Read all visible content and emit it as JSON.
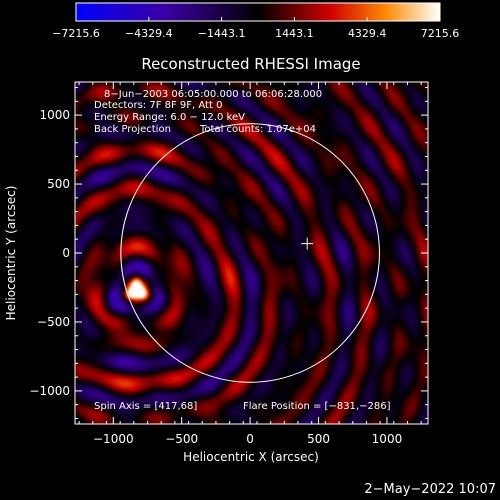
{
  "chart_data": {
    "type": "heatmap",
    "title": "Reconstructed RHESSI Image",
    "xlabel": "Heliocentric X (arcsec)",
    "ylabel": "Heliocentric Y (arcsec)",
    "xlim": [
      -1280,
      1300
    ],
    "ylim": [
      -1240,
      1240
    ],
    "x_ticks": [
      -1000,
      -500,
      0,
      500,
      1000
    ],
    "y_ticks": [
      -1000,
      -500,
      0,
      500,
      1000
    ],
    "x_tick_labels": [
      "−1000",
      "−500",
      "0",
      "500",
      "1000"
    ],
    "y_tick_labels": [
      "−1000",
      "−500",
      "0",
      "500",
      "1000"
    ],
    "colorbar": {
      "min": -7215.6,
      "max": 7215.6,
      "tick_values": [
        -7215.6,
        -4329.4,
        -1443.1,
        1443.1,
        4329.4,
        7215.6
      ],
      "tick_labels": [
        "−7215.6",
        "−4329.4",
        "−1443.1",
        "1443.1",
        "4329.4",
        "7215.6"
      ]
    },
    "annotations": {
      "time": "8−Jun−2003 06:05:00.000 to 06:06:28.000",
      "detectors": "Detectors: 7F 8F 9F, Att 0",
      "energy": "Energy Range: 6.0 − 12.0 keV",
      "method": "Back Projection",
      "counts": "Total counts: 1.07e+04",
      "spin_axis": "Spin Axis = [417,68]",
      "flare_position": "Flare Position = [−831,−286]"
    },
    "solar_limb_radius": 945,
    "spin_axis": [
      417,
      68
    ],
    "flare_position": [
      -831,
      -286
    ],
    "peak_source": [
      -830,
      -270
    ],
    "grid": false
  },
  "footer": {
    "date": "2−May−2022 10:07"
  }
}
